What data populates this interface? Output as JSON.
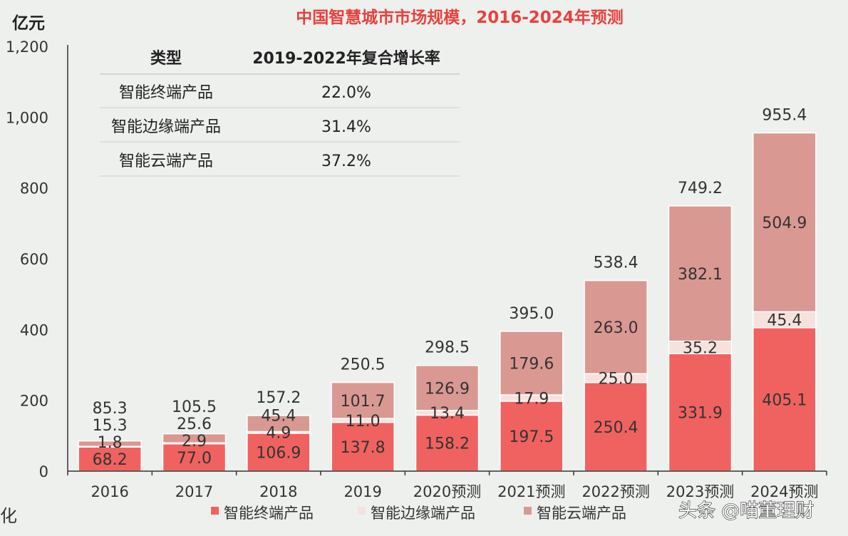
{
  "chart_data": {
    "type": "bar",
    "stacked": true,
    "title": "中国智慧城市市场规模，2016-2024年预测",
    "ylabel": "亿元",
    "xlabel": "",
    "ylim": [
      0,
      1200
    ],
    "yticks": [
      "0",
      "200",
      "400",
      "600",
      "800",
      "1,000",
      "1,200"
    ],
    "yticks_values": [
      0,
      200,
      400,
      600,
      800,
      1000,
      1200
    ],
    "grid": false,
    "legend_position": "bottom",
    "categories": [
      "2016",
      "2017",
      "2018",
      "2019",
      "2020预测",
      "2021预测",
      "2022预测",
      "2023预测",
      "2024预测"
    ],
    "series": [
      {
        "name": "智能终端产品",
        "color": "#ef6260",
        "values": [
          68.2,
          77.0,
          106.9,
          137.8,
          158.2,
          197.5,
          250.4,
          331.9,
          405.1
        ]
      },
      {
        "name": "智能边缘端产品",
        "color": "#f6e2dd",
        "values": [
          1.8,
          2.9,
          4.9,
          11.0,
          13.4,
          17.9,
          25.0,
          35.2,
          45.4
        ]
      },
      {
        "name": "智能云端产品",
        "color": "#da9893",
        "values": [
          15.3,
          25.6,
          45.4,
          101.7,
          126.9,
          179.6,
          263.0,
          382.1,
          504.9
        ]
      }
    ],
    "totals": [
      85.3,
      105.5,
      157.2,
      250.5,
      298.5,
      395.0,
      538.4,
      749.2,
      955.4
    ],
    "annotation_table": {
      "headers": [
        "类型",
        "2019-2022年复合增长率"
      ],
      "rows": [
        [
          "智能终端产品",
          "22.0%"
        ],
        [
          "智能边缘端产品",
          "31.4%"
        ],
        [
          "智能云端产品",
          "37.2%"
        ]
      ]
    }
  },
  "title_color": "#e8413c",
  "left_fragment": "化",
  "watermark": "头条 @喵董理财"
}
